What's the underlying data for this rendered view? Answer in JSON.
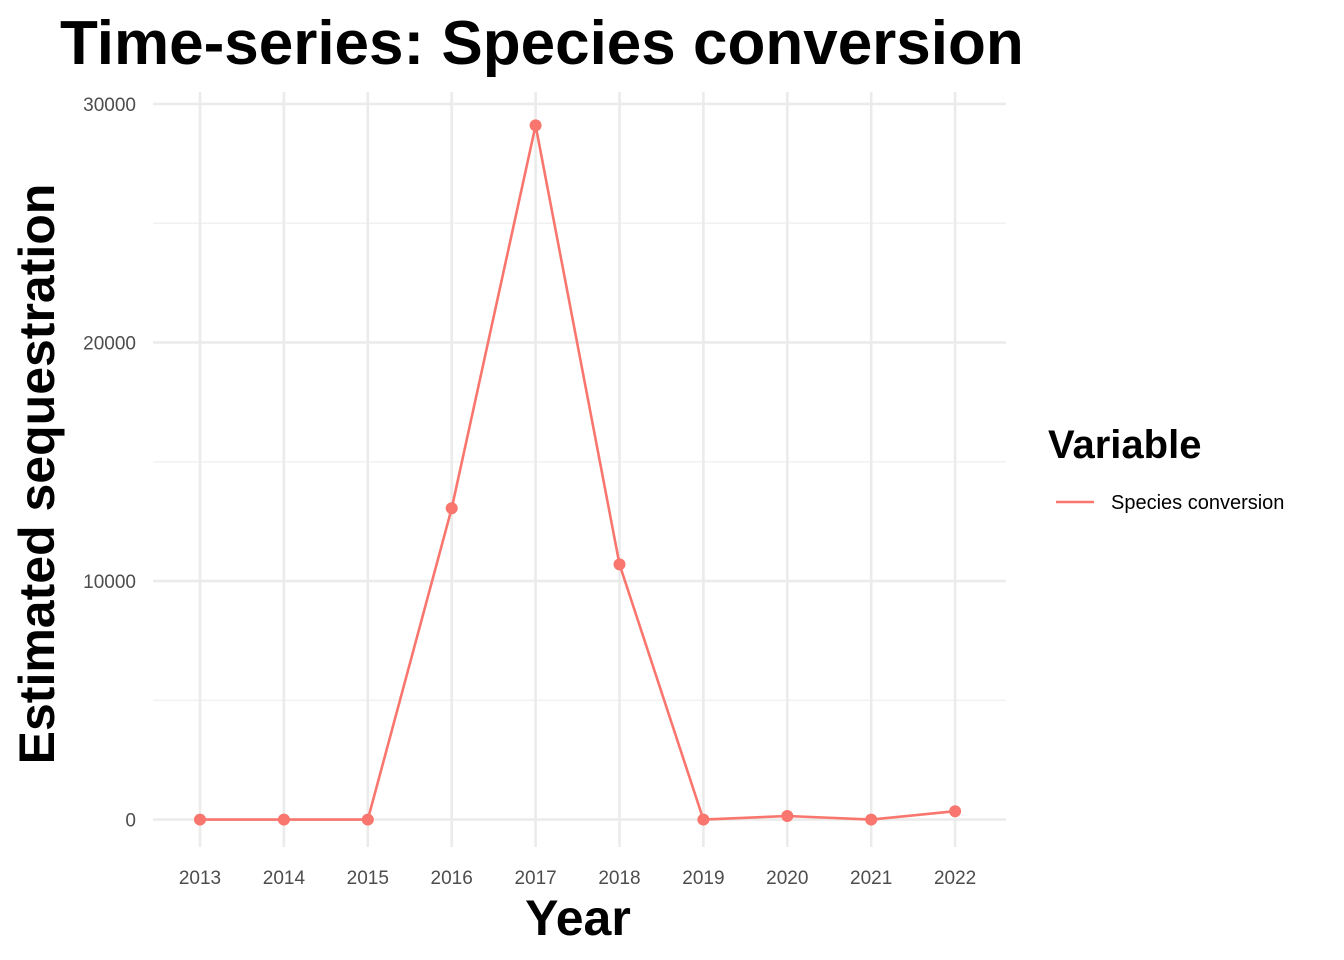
{
  "chart_data": {
    "type": "line",
    "title": "Time-series: Species conversion",
    "xlabel": "Year",
    "ylabel": "Estimated sequestration",
    "x": [
      "2013",
      "2014",
      "2015",
      "2016",
      "2017",
      "2018",
      "2019",
      "2020",
      "2021",
      "2022"
    ],
    "series": [
      {
        "name": "Species conversion",
        "color": "#F8766D",
        "values": [
          0,
          0,
          0,
          13050,
          29100,
          10700,
          0,
          150,
          0,
          350
        ]
      }
    ],
    "ylim": [
      -1150,
      30500
    ],
    "y_major_ticks": [
      0,
      10000,
      20000,
      30000
    ],
    "y_tick_labels": [
      "0",
      "10000",
      "20000",
      "30000"
    ],
    "y_minor_ticks": [
      5000,
      15000,
      25000
    ],
    "grid": true,
    "legend": {
      "title": "Variable",
      "placement": "right",
      "entries": [
        "Species conversion"
      ]
    }
  }
}
